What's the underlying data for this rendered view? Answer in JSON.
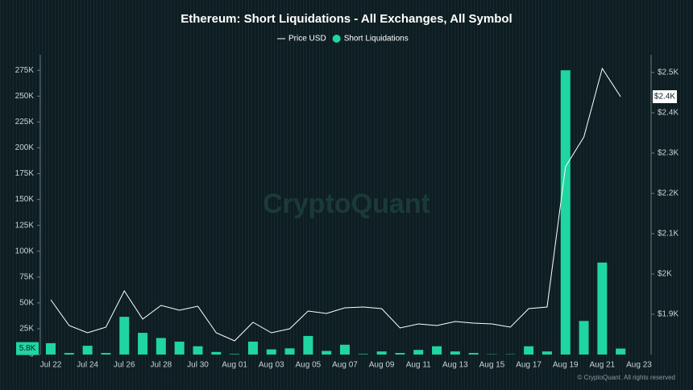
{
  "chart_data": {
    "type": "bar_line",
    "title": "Ethereum: Short Liquidations - All Exchanges, All Symbol",
    "watermark": "CryptoQuant",
    "credit": "© CryptoQuant. All rights reserved",
    "categories": [
      "Jul 22",
      null,
      "Jul 24",
      null,
      "Jul 26",
      null,
      "Jul 28",
      null,
      "Jul 30",
      null,
      "Aug 01",
      null,
      "Aug 03",
      null,
      "Aug 05",
      null,
      "Aug 07",
      null,
      "Aug 09",
      null,
      "Aug 11",
      null,
      "Aug 13",
      null,
      "Aug 15",
      null,
      "Aug 17",
      null,
      "Aug 19",
      null,
      "Aug 21",
      null,
      "Aug 23"
    ],
    "series": [
      {
        "name": "Price USD",
        "kind": "line",
        "axis": "y2",
        "color": "#ffffff",
        "values": [
          1936,
          1872,
          1854,
          1868,
          1958,
          1888,
          1922,
          1910,
          1920,
          1854,
          1834,
          1880,
          1854,
          1864,
          1908,
          1902,
          1916,
          1918,
          1914,
          1866,
          1876,
          1872,
          1882,
          1878,
          1876,
          1868,
          1914,
          1918,
          2266,
          2340,
          2510,
          2440,
          null
        ]
      },
      {
        "name": "Short Liquidations",
        "kind": "bar",
        "color": "#1fd6a0",
        "values": [
          11000,
          1500,
          8500,
          1500,
          36500,
          21000,
          16000,
          12500,
          8000,
          2500,
          500,
          12500,
          5000,
          6000,
          18000,
          3500,
          9500,
          500,
          3000,
          1500,
          4500,
          8000,
          3000,
          1500,
          300,
          300,
          8000,
          3000,
          275000,
          32500,
          89000,
          5800,
          null
        ]
      }
    ],
    "ylim": [
      0,
      290000
    ],
    "yticks": [
      0,
      {
        "value": 25000,
        "label": "25K"
      },
      {
        "value": 50000,
        "label": "50K"
      },
      {
        "value": 75000,
        "label": "75K"
      },
      {
        "value": 100000,
        "label": "100K"
      },
      {
        "value": 125000,
        "label": "125K"
      },
      {
        "value": 150000,
        "label": "150K"
      },
      {
        "value": 175000,
        "label": "175K"
      },
      {
        "value": 200000,
        "label": "200K"
      },
      {
        "value": 225000,
        "label": "225K"
      },
      {
        "value": 250000,
        "label": "250K"
      },
      {
        "value": 275000,
        "label": "275K"
      }
    ],
    "y2lim": [
      1800,
      2544
    ],
    "y2ticks": [
      {
        "value": 1900,
        "label": "$1.9K"
      },
      {
        "value": 2000,
        "label": "$2K"
      },
      {
        "value": 2100,
        "label": "$2.1K"
      },
      {
        "value": 2200,
        "label": "$2.2K"
      },
      {
        "value": 2300,
        "label": "$2.3K"
      },
      {
        "value": 2400,
        "label": "$2.4K"
      },
      {
        "value": 2500,
        "label": "$2.5K"
      }
    ],
    "current_labels": {
      "y": {
        "value": 5800,
        "label": "5.8K"
      },
      "y2": {
        "value": 2440,
        "label": "$2.4K"
      }
    },
    "legend": "top"
  }
}
